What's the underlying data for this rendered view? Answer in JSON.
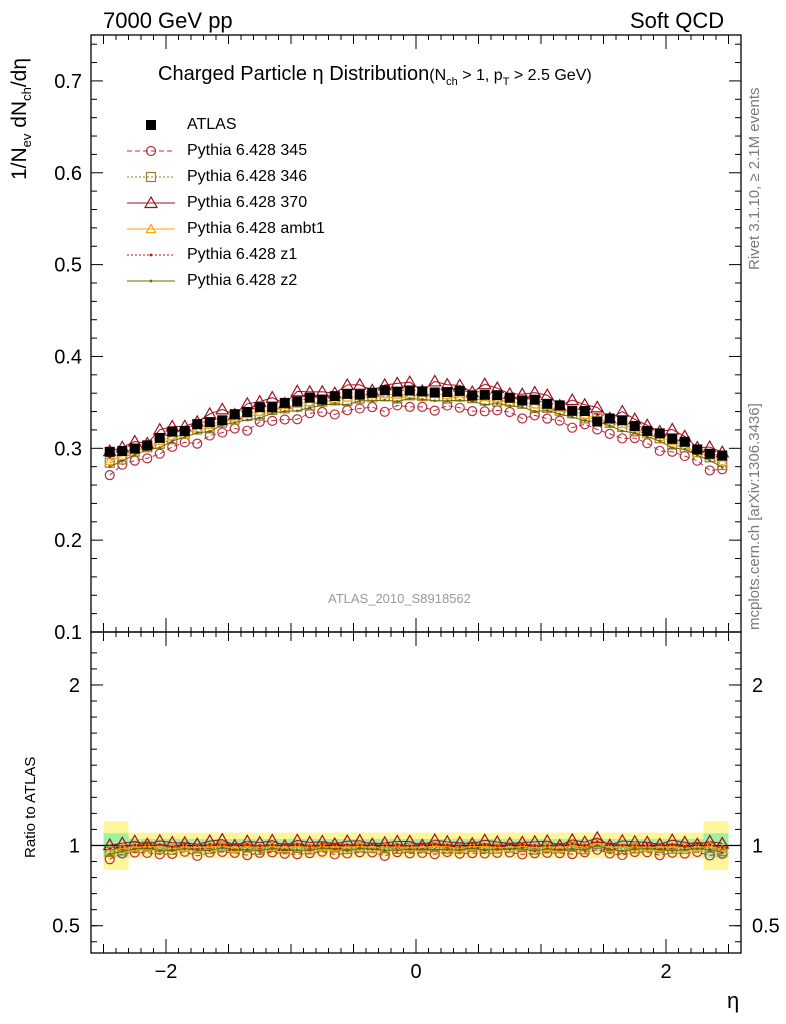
{
  "header": {
    "energy": "7000 GeV pp",
    "category": "Soft QCD"
  },
  "side_labels": {
    "rivet": "Rivet 3.1.10, ≥ 2.1M events",
    "mcplots": "mcplots.cern.ch [arXiv:1306.3436]"
  },
  "title": {
    "main": "Charged Particle η Distribution",
    "cut_text": "(N",
    "cut_sub1": "ch",
    "cut_mid": " > 1, p",
    "cut_sub2": "T",
    "cut_end": " > 2.5 GeV)"
  },
  "watermark": "ATLAS_2010_S8918562",
  "axes": {
    "ylabel_main_parts": [
      "1/N",
      "ev",
      " dN",
      "ch",
      "/dη"
    ],
    "ylabel_ratio": "Ratio to ATLAS",
    "xlabel": "η"
  },
  "chart_data": {
    "type": "scatter",
    "title": "Charged Particle η Distribution (Nch > 1, pT > 2.5 GeV)",
    "x_range": [
      -2.6,
      2.6
    ],
    "main_ylim": [
      0.1,
      0.75
    ],
    "main_yticks": [
      0.1,
      0.2,
      0.3,
      0.4,
      0.5,
      0.6,
      0.7
    ],
    "main_ytick_labels": [
      "0.1",
      "0.2",
      "0.3",
      "0.4",
      "0.5",
      "0.6",
      "0.7"
    ],
    "ratio_ylim": [
      0.33,
      2.33
    ],
    "ratio_yticks": [
      0.5,
      1,
      2
    ],
    "ratio_ytick_labels": [
      "0.5",
      "1",
      "2"
    ],
    "xticks": [
      -2,
      0,
      2
    ],
    "xtick_labels": [
      "−2",
      "0",
      "2"
    ],
    "bins": [
      -2.45,
      -2.35,
      -2.25,
      -2.15,
      -2.05,
      -1.95,
      -1.85,
      -1.75,
      -1.65,
      -1.55,
      -1.45,
      -1.35,
      -1.25,
      -1.15,
      -1.05,
      -0.95,
      -0.85,
      -0.75,
      -0.65,
      -0.55,
      -0.45,
      -0.35,
      -0.25,
      -0.15,
      -0.05,
      0.05,
      0.15,
      0.25,
      0.35,
      0.45,
      0.55,
      0.65,
      0.75,
      0.85,
      0.95,
      1.05,
      1.15,
      1.25,
      1.35,
      1.45,
      1.55,
      1.65,
      1.75,
      1.85,
      1.95,
      2.05,
      2.15,
      2.25,
      2.35,
      2.45
    ],
    "data_shape": {
      "center": 0.362,
      "curv": 0.0123
    },
    "data_points_perturbation": [
      0.008,
      0.003,
      0.0,
      -0.002,
      0.001,
      0.003,
      -0.001,
      0.002,
      0.0,
      -0.002,
      0.001,
      0.0,
      0.002,
      -0.001,
      0.001,
      0.0,
      0.002,
      -0.002,
      0.0,
      0.001,
      -0.001,
      0.0,
      0.002,
      0.0,
      0.001,
      0.0,
      -0.001,
      0.0,
      0.002,
      -0.002,
      0.0,
      0.001,
      0.0,
      -0.001,
      0.002,
      0.0,
      0.001,
      -0.002,
      0.001,
      -0.007,
      0.0,
      0.002,
      0.0,
      -0.001,
      0.001,
      0.0,
      0.002,
      -0.001,
      0.0,
      0.004
    ],
    "series": [
      {
        "name": "ATLAS",
        "marker": "filled-square",
        "color": "#000000",
        "line": "none",
        "scale": 1.0
      },
      {
        "name": "Pythia 6.428 345",
        "marker": "open-circle",
        "color": "#b5303f",
        "line": "dashed",
        "scale": 0.952
      },
      {
        "name": "Pythia 6.428 346",
        "marker": "open-square",
        "color": "#9a7a3a",
        "line": "dotted",
        "scale": 0.985
      },
      {
        "name": "Pythia 6.428 370",
        "marker": "open-triangle",
        "color": "#9b1020",
        "line": "solid",
        "scale": 1.02
      },
      {
        "name": "Pythia 6.428 ambt1",
        "marker": "open-triangle-small",
        "color": "#f5a600",
        "line": "solid",
        "scale": 0.99
      },
      {
        "name": "Pythia 6.428 z1",
        "marker": "dot",
        "color": "#d01010",
        "line": "dotted",
        "scale": 1.005
      },
      {
        "name": "Pythia 6.428 z2",
        "marker": "dot",
        "color": "#6b6b00",
        "line": "solid",
        "scale": 0.975
      }
    ],
    "uncertainty_band_ratio": {
      "inner_halfwidth": 0.04,
      "outer_halfwidth": 0.08,
      "inner_color": "#9ff0a0",
      "outer_color": "#fff59a"
    },
    "grid": false,
    "legend_position": "top-left"
  }
}
